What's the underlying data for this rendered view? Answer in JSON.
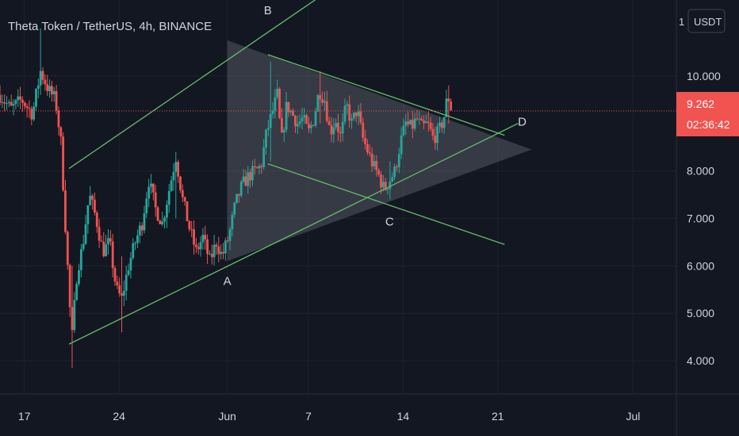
{
  "chart_data": {
    "type": "candlestick",
    "title": "Theta Token / TetherUS, 4h, BINANCE",
    "y_unit": "USDT",
    "y_tick_prefix": "1",
    "y_ticks": [
      "10.000",
      "9.262",
      "8.000",
      "7.000",
      "6.000",
      "5.000",
      "4.000"
    ],
    "y_tick_values": [
      10,
      8,
      7,
      6,
      5,
      4
    ],
    "x_ticks": [
      {
        "label": "17",
        "value": 17
      },
      {
        "label": "24",
        "value": 24
      },
      {
        "label": "Jun",
        "value": 32
      },
      {
        "label": "7",
        "value": 38
      },
      {
        "label": "14",
        "value": 45
      },
      {
        "label": "21",
        "value": 52
      },
      {
        "label": "Jul",
        "value": 62
      }
    ],
    "ylim": [
      3.3,
      11.6
    ],
    "xlim": [
      15.2,
      65.2
    ],
    "current_price": {
      "value": 9.262,
      "label": "9.262",
      "countdown": "02:36:42",
      "color": "#f05350"
    },
    "colors": {
      "up": "#26a69a",
      "down": "#ef5350",
      "pattern": "#66bb6a",
      "triangle": "rgba(120,123,134,0.35)"
    },
    "close_path": [
      [
        15.2,
        9.6
      ],
      [
        16.0,
        9.3
      ],
      [
        16.8,
        9.5
      ],
      [
        17.6,
        9.2
      ],
      [
        18.2,
        10.1
      ],
      [
        18.8,
        9.7
      ],
      [
        19.3,
        9.5
      ],
      [
        19.7,
        8.6
      ],
      [
        20.1,
        6.5
      ],
      [
        20.5,
        4.4
      ],
      [
        20.9,
        5.9
      ],
      [
        21.3,
        6.4
      ],
      [
        21.8,
        7.5
      ],
      [
        22.3,
        7.0
      ],
      [
        22.8,
        6.3
      ],
      [
        23.3,
        6.5
      ],
      [
        23.8,
        5.5
      ],
      [
        24.2,
        5.3
      ],
      [
        24.7,
        6.0
      ],
      [
        25.2,
        6.5
      ],
      [
        25.7,
        6.9
      ],
      [
        26.2,
        7.8
      ],
      [
        26.7,
        7.2
      ],
      [
        27.2,
        6.9
      ],
      [
        27.7,
        7.6
      ],
      [
        28.2,
        8.3
      ],
      [
        28.7,
        7.4
      ],
      [
        29.2,
        6.8
      ],
      [
        29.7,
        6.3
      ],
      [
        30.2,
        6.6
      ],
      [
        30.7,
        6.1
      ],
      [
        31.2,
        6.5
      ],
      [
        31.6,
        6.2
      ],
      [
        32.1,
        6.6
      ],
      [
        32.6,
        7.3
      ],
      [
        33.1,
        7.7
      ],
      [
        33.6,
        7.9
      ],
      [
        34.1,
        8.0
      ],
      [
        34.5,
        8.1
      ],
      [
        34.9,
        8.8
      ],
      [
        35.3,
        9.2
      ],
      [
        35.7,
        9.6
      ],
      [
        36.0,
        8.6
      ],
      [
        36.4,
        9.4
      ],
      [
        36.8,
        9.2
      ],
      [
        37.2,
        9.0
      ],
      [
        37.6,
        9.1
      ],
      [
        38.0,
        8.8
      ],
      [
        38.4,
        9.1
      ],
      [
        38.8,
        9.7
      ],
      [
        39.2,
        9.5
      ],
      [
        39.6,
        8.8
      ],
      [
        40.0,
        9.1
      ],
      [
        40.4,
        8.7
      ],
      [
        40.8,
        9.4
      ],
      [
        41.2,
        9.0
      ],
      [
        41.6,
        9.3
      ],
      [
        42.0,
        8.7
      ],
      [
        42.4,
        8.4
      ],
      [
        42.8,
        8.1
      ],
      [
        43.2,
        7.9
      ],
      [
        43.6,
        7.6
      ],
      [
        44.0,
        7.8
      ],
      [
        44.4,
        8.0
      ],
      [
        44.8,
        8.6
      ],
      [
        45.2,
        9.0
      ],
      [
        45.6,
        8.9
      ],
      [
        46.0,
        9.1
      ],
      [
        46.4,
        8.9
      ],
      [
        46.8,
        9.0
      ],
      [
        47.2,
        8.7
      ],
      [
        47.6,
        8.8
      ],
      [
        48.0,
        9.1
      ],
      [
        48.3,
        9.6
      ],
      [
        48.6,
        9.262
      ]
    ],
    "extremes": [
      [
        18.2,
        11.0,
        9.6
      ],
      [
        20.5,
        6.0,
        3.85
      ],
      [
        24.2,
        6.2,
        4.6
      ],
      [
        28.2,
        8.4,
        7.0
      ],
      [
        35.2,
        10.3,
        8.2
      ],
      [
        38.9,
        10.1,
        9.0
      ],
      [
        44.0,
        8.2,
        7.4
      ],
      [
        48.3,
        9.8,
        9.0
      ]
    ],
    "annotations": [
      {
        "label": "A",
        "x": 32.0,
        "y": 5.6
      },
      {
        "label": "B",
        "x": 35.0,
        "y": 11.3
      },
      {
        "label": "C",
        "x": 44.0,
        "y": 6.85
      },
      {
        "label": "D",
        "x": 53.8,
        "y": 8.95
      }
    ],
    "lines": [
      {
        "name": "lower-channel-line",
        "x1": 20.3,
        "y1": 4.35,
        "x2": 53.5,
        "y2": 9.0
      },
      {
        "name": "upper-channel-line",
        "x1": 20.3,
        "y1": 8.05,
        "x2": 39.0,
        "y2": 11.7
      },
      {
        "name": "triangle-top-line",
        "x1": 35.0,
        "y1": 10.45,
        "x2": 52.5,
        "y2": 8.75
      },
      {
        "name": "falling-channel-line",
        "x1": 35.0,
        "y1": 8.15,
        "x2": 52.5,
        "y2": 6.45
      }
    ],
    "triangle": [
      [
        32.0,
        10.75
      ],
      [
        32.0,
        6.1
      ],
      [
        54.5,
        8.45
      ]
    ]
  }
}
